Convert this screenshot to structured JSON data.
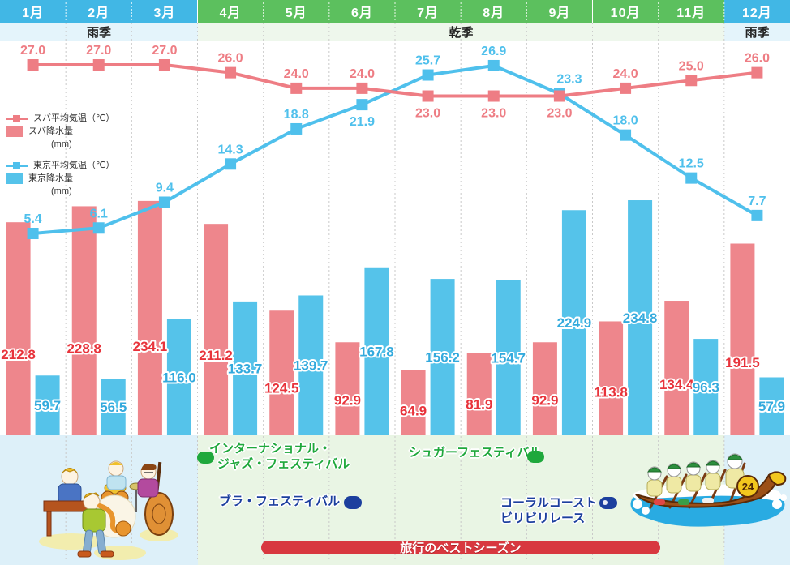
{
  "header": {
    "months": [
      "1月",
      "2月",
      "3月",
      "4月",
      "5月",
      "6月",
      "7月",
      "8月",
      "9月",
      "10月",
      "11月",
      "12月"
    ],
    "month_season": [
      "rainy",
      "rainy",
      "rainy",
      "dry",
      "dry",
      "dry",
      "dry",
      "dry",
      "dry",
      "dry",
      "dry",
      "rainy"
    ],
    "seasons": [
      {
        "label": "雨季",
        "from": 0,
        "to": 2
      },
      {
        "label": "乾季",
        "from": 3,
        "to": 10
      },
      {
        "label": "雨季",
        "from": 11,
        "to": 11
      }
    ]
  },
  "legend": {
    "suva_temp": "スバ平均気温（℃）",
    "suva_rain": "スバ降水量",
    "suva_rain_unit": "(mm)",
    "tokyo_temp": "東京平均気温（℃）",
    "tokyo_rain": "東京降水量",
    "tokyo_rain_unit": "(mm)"
  },
  "chart_data": {
    "type": "combo-bar-line",
    "categories": [
      "1月",
      "2月",
      "3月",
      "4月",
      "5月",
      "6月",
      "7月",
      "8月",
      "9月",
      "10月",
      "11月",
      "12月"
    ],
    "series": [
      {
        "name": "スバ平均気温（℃）",
        "type": "line",
        "axis": "temperature_c",
        "values": [
          27.0,
          27.0,
          27.0,
          26.0,
          24.0,
          24.0,
          23.0,
          23.0,
          23.0,
          24.0,
          25.0,
          26.0
        ]
      },
      {
        "name": "東京平均気温（℃）",
        "type": "line",
        "axis": "temperature_c",
        "values": [
          5.4,
          6.1,
          9.4,
          14.3,
          18.8,
          21.9,
          25.7,
          26.9,
          23.3,
          18.0,
          12.5,
          7.7
        ]
      },
      {
        "name": "スバ降水量(mm)",
        "type": "bar",
        "axis": "rainfall_mm",
        "values": [
          212.8,
          228.8,
          234.1,
          211.2,
          124.5,
          92.9,
          64.9,
          81.9,
          92.9,
          113.8,
          134.4,
          191.5
        ]
      },
      {
        "name": "東京降水量(mm)",
        "type": "bar",
        "axis": "rainfall_mm",
        "values": [
          59.7,
          56.5,
          116.0,
          133.7,
          139.7,
          167.8,
          156.2,
          154.7,
          224.9,
          234.8,
          96.3,
          57.9
        ]
      }
    ],
    "grid": "vertical-dashed-month-boundaries",
    "legend_position": "left",
    "data_labels": "all points labeled with values"
  },
  "festivals": [
    {
      "id": "jazz",
      "lines": [
        "インターナショナル・",
        "ジャズ・フェスティバル"
      ],
      "marker_side": "left"
    },
    {
      "id": "sugar",
      "lines": [
        "シュガーフェスティバル"
      ],
      "marker_side": "right"
    },
    {
      "id": "bula",
      "lines": [
        "ブラ・フェスティバル"
      ],
      "marker_side": "right"
    },
    {
      "id": "coral",
      "lines": [
        "コーラルコースト",
        "ビリビリレース"
      ],
      "marker_side": "right-of-line1"
    }
  ],
  "best_season_label": "旅行のベストシーズン",
  "colors": {
    "header_rainy": "#41b7e5",
    "header_dry": "#5cc05e",
    "season_row_rainy": "#e4f4fb",
    "season_row_dry": "#eef7ec",
    "bottom_rainy": "#ddf0f9",
    "bottom_dry": "#e9f5e4",
    "suva_line": "#ee7d84",
    "tokyo_line": "#4fc0ec",
    "suva_bar": "#ee868c",
    "tokyo_bar": "#55c3ea",
    "suva_bar_label": "#e8333b",
    "tokyo_bar_label": "#33aadd",
    "festival_green": "#1fa83c",
    "festival_blue": "#1c3f9e",
    "best_season_red": "#d8383f",
    "gridline": "#c9c9c9"
  }
}
